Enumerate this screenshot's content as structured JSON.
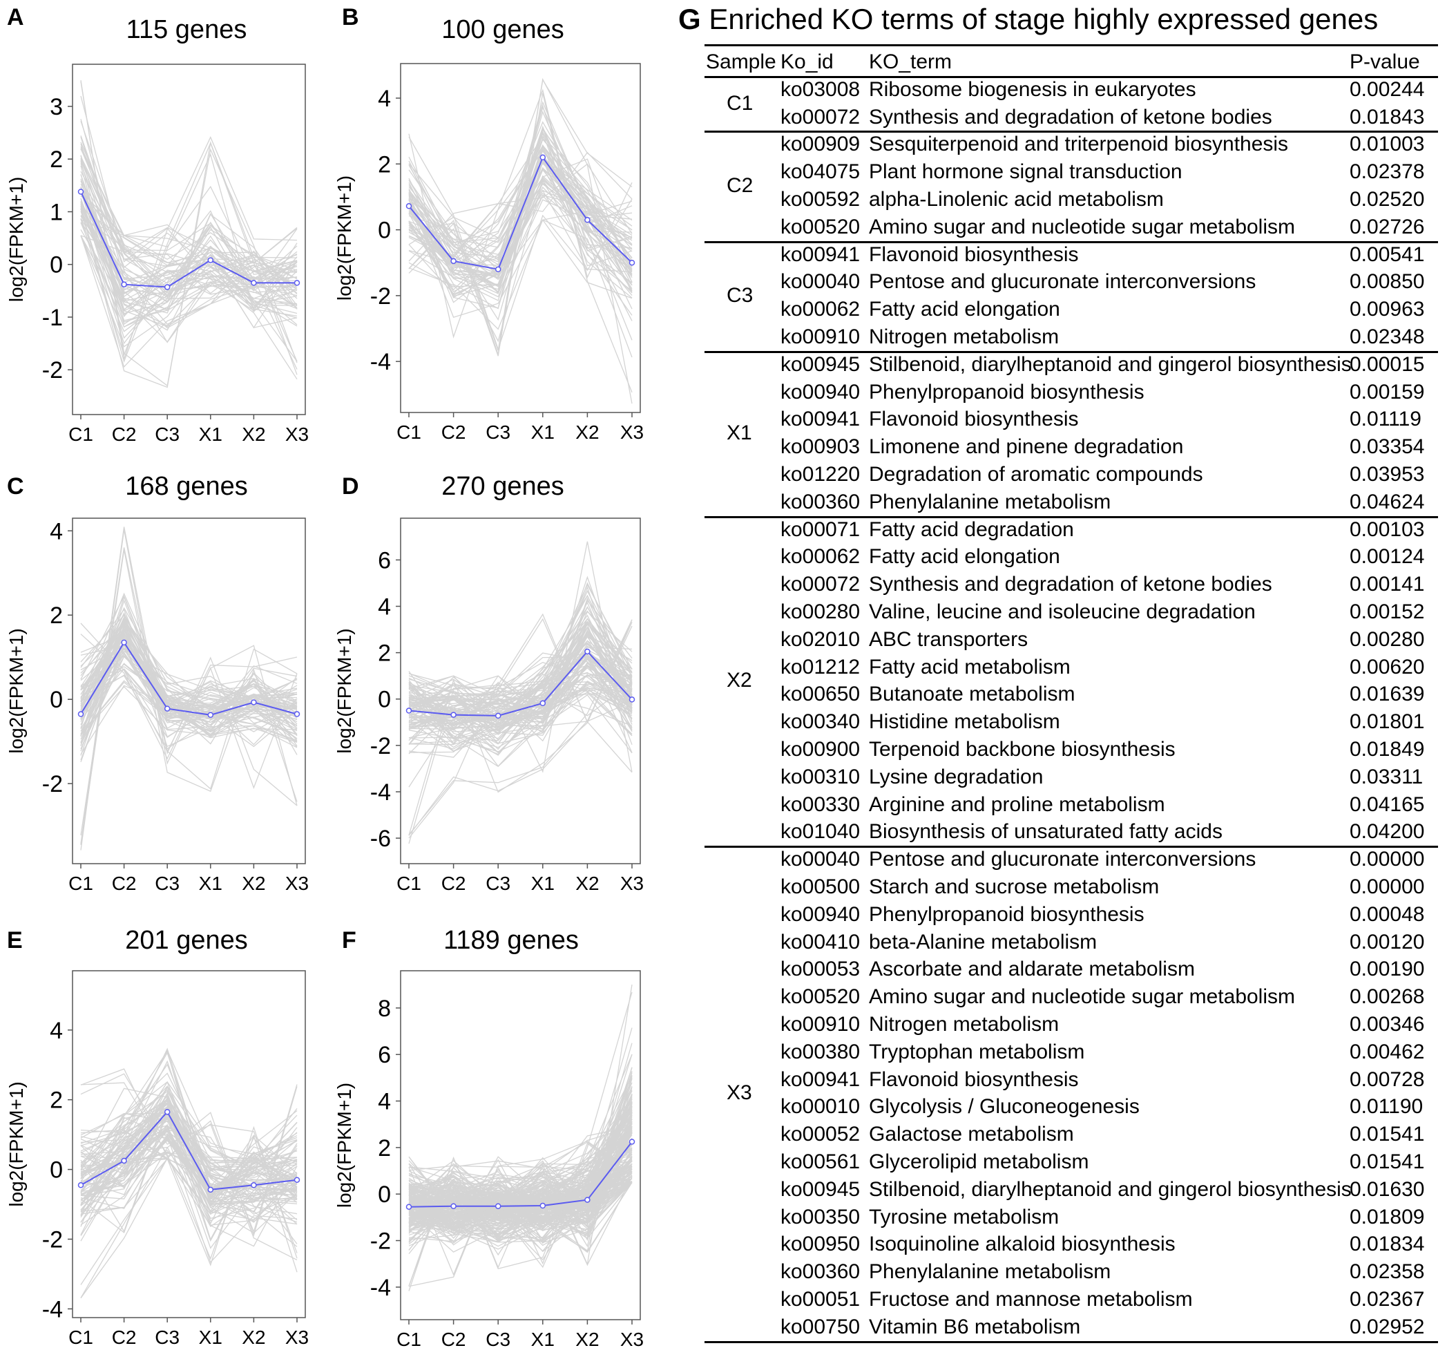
{
  "colors": {
    "series_line": "#5b5bf0",
    "background_lines": "#d4d4d4",
    "axis": "#555555"
  },
  "chart_data": [
    {
      "panel": "A",
      "type": "line",
      "title": "115 genes",
      "ylabel": "log2(FPKM+1)",
      "categories": [
        "C1",
        "C2",
        "C3",
        "X1",
        "X2",
        "X3"
      ],
      "ylim": [
        -2.85,
        3.8
      ],
      "yticks": [
        3,
        2,
        1,
        0,
        -1,
        -2
      ],
      "mean": [
        1.38,
        -0.38,
        -0.43,
        0.08,
        -0.35,
        -0.35
      ],
      "n_lines": 70,
      "spread": [
        0.75,
        0.7,
        0.55,
        0.5,
        0.45,
        0.55
      ],
      "range": [
        [
          0.55,
          3.6
        ],
        [
          -2.1,
          0.55
        ],
        [
          -2.5,
          0.8
        ],
        [
          -0.75,
          2.6
        ],
        [
          -1.2,
          0.55
        ],
        [
          -2.4,
          0.7
        ]
      ]
    },
    {
      "panel": "B",
      "type": "line",
      "title": "100 genes",
      "ylabel": "log2(FPKM+1)",
      "categories": [
        "C1",
        "C2",
        "C3",
        "X1",
        "X2",
        "X3"
      ],
      "ylim": [
        -5.55,
        5.05
      ],
      "yticks": [
        4,
        2,
        0,
        -2,
        -4
      ],
      "mean": [
        0.72,
        -0.95,
        -1.2,
        2.2,
        0.3,
        -1.0
      ],
      "n_lines": 70,
      "spread": [
        0.9,
        0.8,
        0.9,
        0.9,
        0.8,
        1.0
      ],
      "range": [
        [
          -1.5,
          3.4
        ],
        [
          -3.5,
          0.5
        ],
        [
          -4.1,
          0.8
        ],
        [
          0.3,
          4.6
        ],
        [
          -1.6,
          2.5
        ],
        [
          -5.4,
          1.5
        ]
      ]
    },
    {
      "panel": "C",
      "type": "line",
      "title": "168 genes",
      "ylabel": "log2(FPKM+1)",
      "categories": [
        "C1",
        "C2",
        "C3",
        "X1",
        "X2",
        "X3"
      ],
      "ylim": [
        -3.9,
        4.3
      ],
      "yticks": [
        4,
        2,
        0,
        -2
      ],
      "mean": [
        -0.35,
        1.35,
        -0.22,
        -0.37,
        -0.07,
        -0.35
      ],
      "n_lines": 80,
      "spread": [
        0.7,
        0.55,
        0.45,
        0.5,
        0.45,
        0.5
      ],
      "range": [
        [
          -3.6,
          2.0
        ],
        [
          0.3,
          4.1
        ],
        [
          -1.8,
          1.2
        ],
        [
          -2.7,
          1.2
        ],
        [
          -2.1,
          1.3
        ],
        [
          -3.0,
          1.2
        ]
      ]
    },
    {
      "panel": "D",
      "type": "line",
      "title": "270 genes",
      "ylabel": "log2(FPKM+1)",
      "categories": [
        "C1",
        "C2",
        "C3",
        "X1",
        "X2",
        "X3"
      ],
      "ylim": [
        -7.1,
        7.8
      ],
      "yticks": [
        6,
        4,
        2,
        0,
        -2,
        -4,
        -6
      ],
      "mean": [
        -0.5,
        -0.68,
        -0.72,
        -0.18,
        2.05,
        -0.02
      ],
      "n_lines": 110,
      "spread": [
        1.0,
        0.9,
        0.9,
        1.0,
        1.4,
        1.0
      ],
      "range": [
        [
          -6.4,
          1.2
        ],
        [
          -3.8,
          1.0
        ],
        [
          -4.1,
          1.0
        ],
        [
          -3.2,
          3.8
        ],
        [
          -1.2,
          7.2
        ],
        [
          -3.2,
          3.5
        ]
      ]
    },
    {
      "panel": "E",
      "type": "line",
      "title": "201 genes",
      "ylabel": "log2(FPKM+1)",
      "categories": [
        "C1",
        "C2",
        "C3",
        "X1",
        "X2",
        "X3"
      ],
      "ylim": [
        -4.25,
        5.7
      ],
      "yticks": [
        4,
        2,
        0,
        -2,
        -4
      ],
      "mean": [
        -0.45,
        0.25,
        1.65,
        -0.58,
        -0.45,
        -0.3
      ],
      "n_lines": 100,
      "spread": [
        0.9,
        0.9,
        0.85,
        0.7,
        0.65,
        0.8
      ],
      "range": [
        [
          -3.9,
          2.5
        ],
        [
          -2.0,
          2.9
        ],
        [
          0.3,
          4.9
        ],
        [
          -2.8,
          1.7
        ],
        [
          -2.2,
          1.4
        ],
        [
          -3.0,
          2.8
        ]
      ]
    },
    {
      "panel": "F",
      "type": "line",
      "title": "1189 genes",
      "ylabel": "log2(FPKM+1)",
      "categories": [
        "C1",
        "C2",
        "C3",
        "X1",
        "X2",
        "X3"
      ],
      "ylim": [
        -5.4,
        9.6
      ],
      "yticks": [
        8,
        6,
        4,
        2,
        0,
        -2,
        -4
      ],
      "mean": [
        -0.55,
        -0.52,
        -0.52,
        -0.5,
        -0.25,
        2.25
      ],
      "n_lines": 220,
      "spread": [
        0.95,
        0.9,
        0.9,
        0.9,
        1.0,
        2.0
      ],
      "range": [
        [
          -4.3,
          1.6
        ],
        [
          -3.9,
          1.6
        ],
        [
          -3.3,
          1.6
        ],
        [
          -3.3,
          1.6
        ],
        [
          -3.5,
          2.5
        ],
        [
          0.5,
          9.2
        ]
      ]
    }
  ],
  "table": {
    "letter": "G",
    "title": "Enriched KO terms of stage highly expressed genes",
    "headers": [
      "Sample",
      "Ko_id",
      "KO_term",
      "P-value"
    ],
    "groups": [
      {
        "sample": "C1",
        "rows": [
          [
            "ko03008",
            "Ribosome biogenesis in eukaryotes",
            "0.00244"
          ],
          [
            "ko00072",
            "Synthesis and degradation of ketone bodies",
            "0.01843"
          ]
        ]
      },
      {
        "sample": "C2",
        "rows": [
          [
            "ko00909",
            "Sesquiterpenoid and triterpenoid biosynthesis",
            "0.01003"
          ],
          [
            "ko04075",
            "Plant hormone signal transduction",
            "0.02378"
          ],
          [
            "ko00592",
            "alpha-Linolenic acid metabolism",
            "0.02520"
          ],
          [
            "ko00520",
            "Amino sugar and nucleotide sugar metabolism",
            "0.02726"
          ]
        ]
      },
      {
        "sample": "C3",
        "rows": [
          [
            "ko00941",
            "Flavonoid biosynthesis",
            "0.00541"
          ],
          [
            "ko00040",
            "Pentose and glucuronate interconversions",
            "0.00850"
          ],
          [
            "ko00062",
            "Fatty acid elongation",
            "0.00963"
          ],
          [
            "ko00910",
            "Nitrogen metabolism",
            "0.02348"
          ]
        ]
      },
      {
        "sample": "X1",
        "rows": [
          [
            "ko00945",
            "Stilbenoid, diarylheptanoid and gingerol biosynthesis",
            "0.00015"
          ],
          [
            "ko00940",
            "Phenylpropanoid biosynthesis",
            "0.00159"
          ],
          [
            "ko00941",
            "Flavonoid biosynthesis",
            "0.01119"
          ],
          [
            "ko00903",
            "Limonene and pinene degradation",
            "0.03354"
          ],
          [
            "ko01220",
            "Degradation of aromatic compounds",
            "0.03953"
          ],
          [
            "ko00360",
            "Phenylalanine metabolism",
            "0.04624"
          ]
        ]
      },
      {
        "sample": "X2",
        "rows": [
          [
            "ko00071",
            "Fatty acid degradation",
            "0.00103"
          ],
          [
            "ko00062",
            "Fatty acid elongation",
            "0.00124"
          ],
          [
            "ko00072",
            "Synthesis and degradation of ketone bodies",
            "0.00141"
          ],
          [
            "ko00280",
            "Valine, leucine and isoleucine degradation",
            "0.00152"
          ],
          [
            "ko02010",
            "ABC transporters",
            "0.00280"
          ],
          [
            "ko01212",
            "Fatty acid metabolism",
            "0.00620"
          ],
          [
            "ko00650",
            "Butanoate metabolism",
            "0.01639"
          ],
          [
            "ko00340",
            "Histidine metabolism",
            "0.01801"
          ],
          [
            "ko00900",
            "Terpenoid backbone biosynthesis",
            "0.01849"
          ],
          [
            "ko00310",
            "Lysine degradation",
            "0.03311"
          ],
          [
            "ko00330",
            "Arginine and proline metabolism",
            "0.04165"
          ],
          [
            "ko01040",
            "Biosynthesis of unsaturated fatty acids",
            "0.04200"
          ]
        ]
      },
      {
        "sample": "X3",
        "rows": [
          [
            "ko00040",
            "Pentose and glucuronate interconversions",
            "0.00000"
          ],
          [
            "ko00500",
            "Starch and sucrose metabolism",
            "0.00000"
          ],
          [
            "ko00940",
            "Phenylpropanoid biosynthesis",
            "0.00048"
          ],
          [
            "ko00410",
            "beta-Alanine metabolism",
            "0.00120"
          ],
          [
            "ko00053",
            "Ascorbate and aldarate metabolism",
            "0.00190"
          ],
          [
            "ko00520",
            "Amino sugar and nucleotide sugar metabolism",
            "0.00268"
          ],
          [
            "ko00910",
            "Nitrogen metabolism",
            "0.00346"
          ],
          [
            "ko00380",
            "Tryptophan metabolism",
            "0.00462"
          ],
          [
            "ko00941",
            "Flavonoid biosynthesis",
            "0.00728"
          ],
          [
            "ko00010",
            "Glycolysis / Gluconeogenesis",
            "0.01190"
          ],
          [
            "ko00052",
            "Galactose metabolism",
            "0.01541"
          ],
          [
            "ko00561",
            "Glycerolipid metabolism",
            "0.01541"
          ],
          [
            "ko00945",
            "Stilbenoid, diarylheptanoid and gingerol biosynthesis",
            "0.01630"
          ],
          [
            "ko00350",
            "Tyrosine metabolism",
            "0.01809"
          ],
          [
            "ko00950",
            "Isoquinoline alkaloid biosynthesis",
            "0.01834"
          ],
          [
            "ko00360",
            "Phenylalanine metabolism",
            "0.02358"
          ],
          [
            "ko00051",
            "Fructose and mannose metabolism",
            "0.02367"
          ],
          [
            "ko00750",
            "Vitamin B6 metabolism",
            "0.02952"
          ]
        ]
      }
    ]
  }
}
